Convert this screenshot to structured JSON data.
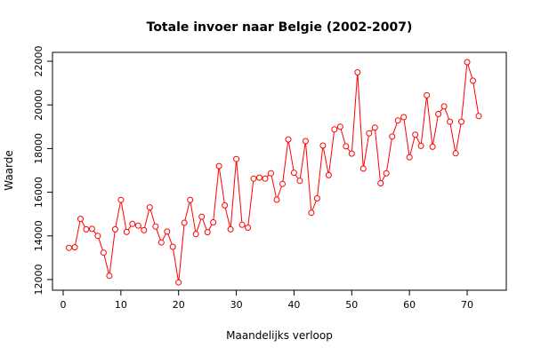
{
  "chart_data": {
    "type": "line",
    "title": "Totale invoer naar Belgie (2002-2007)",
    "xlabel": "Maandelijks verloop",
    "ylabel": "Waarde",
    "xlim": [
      0,
      72
    ],
    "ylim": [
      12000,
      22000
    ],
    "xticks": [
      0,
      10,
      20,
      30,
      40,
      50,
      60,
      70
    ],
    "yticks": [
      12000,
      14000,
      16000,
      18000,
      20000,
      22000
    ],
    "grid": false,
    "series": [
      {
        "color": "#ff0000",
        "x": [
          1,
          2,
          3,
          4,
          5,
          6,
          7,
          8,
          9,
          10,
          11,
          12,
          13,
          14,
          15,
          16,
          17,
          18,
          19,
          20,
          21,
          22,
          23,
          24,
          25,
          26,
          27,
          28,
          29,
          30,
          31,
          32,
          33,
          34,
          35,
          36,
          37,
          38,
          39,
          40,
          41,
          42,
          43,
          44,
          45,
          46,
          47,
          48,
          49,
          50,
          51,
          52,
          53,
          54,
          55,
          56,
          57,
          58,
          59,
          60,
          61,
          62,
          63,
          64,
          65,
          66,
          67,
          68,
          69,
          70,
          71,
          72
        ],
        "values": [
          13450,
          13480,
          14780,
          14300,
          14320,
          14000,
          13230,
          12170,
          14300,
          15650,
          14180,
          14550,
          14470,
          14260,
          15310,
          14430,
          13700,
          14200,
          13500,
          11870,
          14600,
          15650,
          14080,
          14880,
          14170,
          14620,
          17200,
          15400,
          14300,
          17520,
          14510,
          14380,
          16620,
          16670,
          16620,
          16870,
          15660,
          16380,
          18420,
          16890,
          16520,
          18340,
          15060,
          15720,
          18140,
          16780,
          18880,
          19000,
          18100,
          17770,
          21490,
          17080,
          18700,
          18960,
          16410,
          16870,
          18550,
          19290,
          19440,
          17600,
          18640,
          18120,
          20440,
          18080,
          19580,
          19930,
          19230,
          17780,
          19230,
          21960,
          21110,
          19490
        ]
      }
    ]
  }
}
